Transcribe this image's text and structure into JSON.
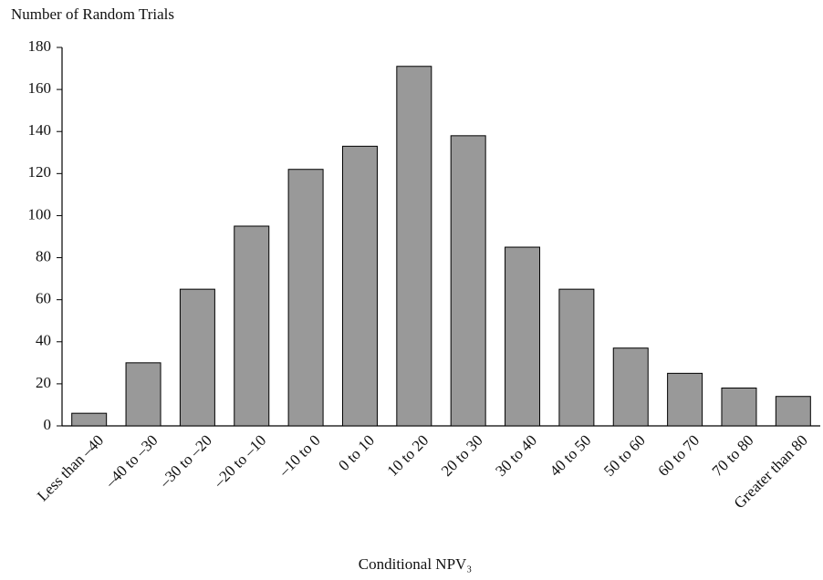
{
  "chart_data": {
    "type": "bar",
    "ylabel": "Number of Random Trials",
    "xlabel": "Conditional NPV₃",
    "categories": [
      "Less than –40",
      "–40 to –30",
      "–30 to –20",
      "–20 to –10",
      "–10 to 0",
      "0 to 10",
      "10 to 20",
      "20 to 30",
      "30 to 40",
      "40 to 50",
      "50 to 60",
      "60 to 70",
      "70 to 80",
      "Greater than 80"
    ],
    "values": [
      6,
      30,
      65,
      95,
      122,
      133,
      171,
      138,
      85,
      65,
      37,
      25,
      18,
      14
    ],
    "color": "#999999",
    "ylim": [
      0,
      180
    ],
    "yticks": [
      0,
      20,
      40,
      60,
      80,
      100,
      120,
      140,
      160,
      180
    ],
    "grid": false
  }
}
